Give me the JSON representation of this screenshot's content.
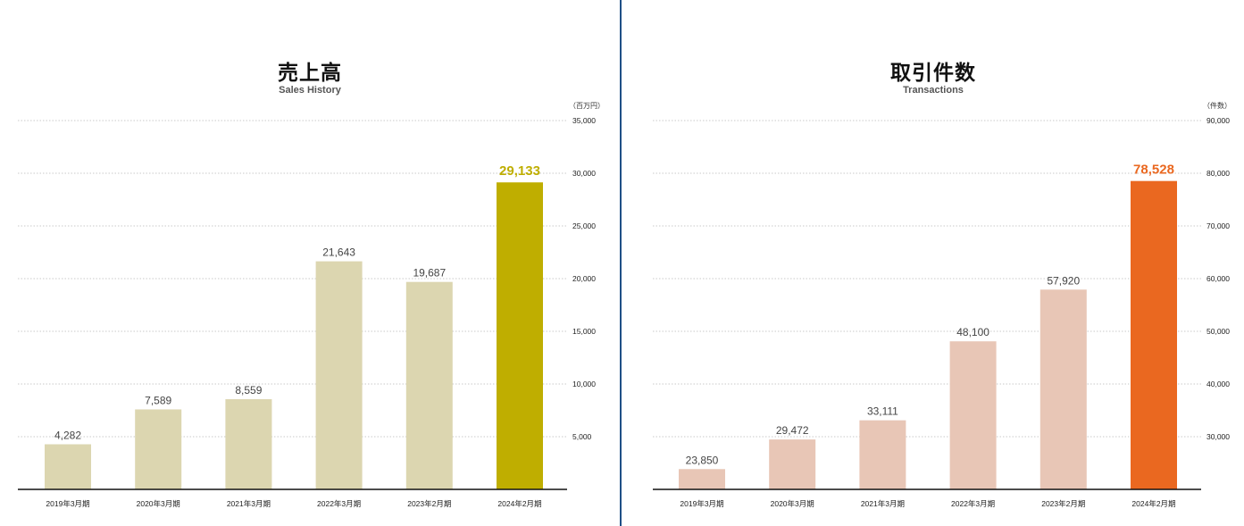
{
  "charts": [
    {
      "title": "売上高",
      "subtitle": "Sales History",
      "unit": "（百万円）"
    },
    {
      "title": "取引件数",
      "subtitle": "Transactions",
      "unit": "（件数）"
    }
  ],
  "chart_data": [
    {
      "type": "bar",
      "title": "売上高",
      "subtitle": "Sales History",
      "unit": "（百万円）",
      "categories": [
        "2019年3月期",
        "2020年3月期",
        "2021年3月期",
        "2022年3月期",
        "2023年2月期",
        "2024年2月期"
      ],
      "values": [
        4282,
        7589,
        8559,
        21643,
        19687,
        29133
      ],
      "value_labels": [
        "4,282",
        "7,589",
        "8,559",
        "21,643",
        "19,687",
        "29,133"
      ],
      "ylim": [
        0,
        35000
      ],
      "yticks": [
        5000,
        10000,
        15000,
        20000,
        25000,
        30000,
        35000
      ],
      "ytick_labels": [
        "5,000",
        "10,000",
        "15,000",
        "20,000",
        "25,000",
        "30,000",
        "35,000"
      ],
      "y_axis_position": "right",
      "grid": true,
      "bar_color": "#dcd6b0",
      "highlight_color": "#bfae00",
      "highlight_index": 5
    },
    {
      "type": "bar",
      "title": "取引件数",
      "subtitle": "Transactions",
      "unit": "（件数）",
      "categories": [
        "2019年3月期",
        "2020年3月期",
        "2021年3月期",
        "2022年3月期",
        "2023年2月期",
        "2024年2月期"
      ],
      "values": [
        23850,
        29472,
        33111,
        48100,
        57920,
        78528
      ],
      "value_labels": [
        "23,850",
        "29,472",
        "33,111",
        "48,100",
        "57,920",
        "78,528"
      ],
      "ylim": [
        20000,
        90000
      ],
      "yticks": [
        30000,
        40000,
        50000,
        60000,
        70000,
        80000,
        90000
      ],
      "ytick_labels": [
        "30,000",
        "40,000",
        "50,000",
        "60,000",
        "70,000",
        "80,000",
        "90,000"
      ],
      "y_axis_position": "right",
      "grid": true,
      "bar_color": "#e8c6b6",
      "highlight_color": "#ea6820",
      "highlight_index": 5
    }
  ]
}
